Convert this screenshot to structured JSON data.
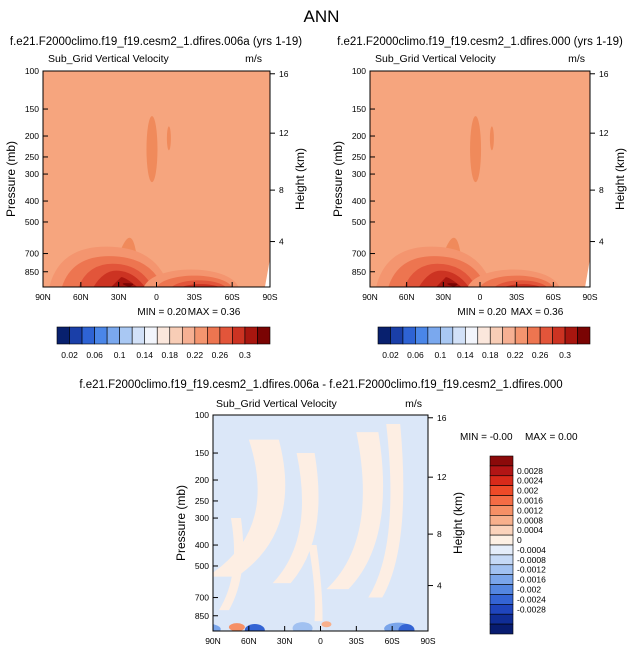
{
  "page": {
    "title": "ANN"
  },
  "chart_data": [
    {
      "type": "heatmap",
      "title": "f.e21.F2000climo.f19_f19.cesm2_1.dfires.006a (yrs 1-19)",
      "subtitle": "Sub_Grid Vertical Velocity",
      "units": "m/s",
      "xlabel": "",
      "ylabel": "Pressure (mb)",
      "ylabel_right": "Height (km)",
      "x_ticks": [
        "90N",
        "60N",
        "30N",
        "0",
        "30S",
        "60S",
        "90S"
      ],
      "y_ticks": [
        "100",
        "150",
        "200",
        "250",
        "300",
        "400",
        "500",
        "700",
        "850"
      ],
      "y_ticks_right": [
        "16",
        "12",
        "8",
        "4"
      ],
      "y_scale": "log",
      "ylim": [
        1000,
        100
      ],
      "min_label": "MIN =  0.20",
      "max_label": "MAX =  0.36",
      "background_value": 0.2,
      "features": [
        {
          "lat": 2,
          "p": 210,
          "value": 0.22
        },
        {
          "lat": -13,
          "p": 200,
          "value": 0.22
        },
        {
          "lat": 30,
          "p": 900,
          "value": 0.36
        },
        {
          "lat": -35,
          "p": 900,
          "value": 0.26
        }
      ],
      "colorbar": {
        "orientation": "horizontal",
        "labels": [
          "0.02",
          "0.06",
          "0.1",
          "0.14",
          "0.18",
          "0.22",
          "0.26",
          "0.3"
        ],
        "colors": [
          "#08206e",
          "#1a3fa8",
          "#2e63d4",
          "#4a86e8",
          "#7aa8ee",
          "#a9c8f3",
          "#d2e1f8",
          "#f2f5fc",
          "#fbe7dc",
          "#f8cdb6",
          "#f6b093",
          "#f4956f",
          "#ed7550",
          "#e2553a",
          "#cc3322",
          "#a8160f",
          "#7a0403"
        ]
      }
    },
    {
      "type": "heatmap",
      "title": "f.e21.F2000climo.f19_f19.cesm2_1.dfires.000 (yrs 1-19)",
      "subtitle": "Sub_Grid Vertical Velocity",
      "units": "m/s",
      "xlabel": "",
      "ylabel": "Pressure (mb)",
      "ylabel_right": "Height (km)",
      "x_ticks": [
        "90N",
        "60N",
        "30N",
        "0",
        "30S",
        "60S",
        "90S"
      ],
      "y_ticks": [
        "100",
        "150",
        "200",
        "250",
        "300",
        "400",
        "500",
        "700",
        "850"
      ],
      "y_ticks_right": [
        "16",
        "12",
        "8",
        "4"
      ],
      "y_scale": "log",
      "ylim": [
        1000,
        100
      ],
      "min_label": "MIN =  0.20",
      "max_label": "MAX =  0.36",
      "background_value": 0.2,
      "features": [
        {
          "lat": 2,
          "p": 210,
          "value": 0.22
        },
        {
          "lat": -13,
          "p": 200,
          "value": 0.22
        },
        {
          "lat": 30,
          "p": 900,
          "value": 0.36
        },
        {
          "lat": -35,
          "p": 900,
          "value": 0.26
        }
      ],
      "colorbar": {
        "orientation": "horizontal",
        "labels": [
          "0.02",
          "0.06",
          "0.1",
          "0.14",
          "0.18",
          "0.22",
          "0.26",
          "0.3"
        ],
        "colors": [
          "#08206e",
          "#1a3fa8",
          "#2e63d4",
          "#4a86e8",
          "#7aa8ee",
          "#a9c8f3",
          "#d2e1f8",
          "#f2f5fc",
          "#fbe7dc",
          "#f8cdb6",
          "#f6b093",
          "#f4956f",
          "#ed7550",
          "#e2553a",
          "#cc3322",
          "#a8160f",
          "#7a0403"
        ]
      }
    },
    {
      "type": "heatmap",
      "title": "f.e21.F2000climo.f19_f19.cesm2_1.dfires.006a - f.e21.F2000climo.f19_f19.cesm2_1.dfires.000",
      "subtitle": "Sub_Grid Vertical Velocity",
      "units": "m/s",
      "xlabel": "",
      "ylabel": "Pressure (mb)",
      "ylabel_right": "Height (km)",
      "x_ticks": [
        "90N",
        "60N",
        "30N",
        "0",
        "30S",
        "60S",
        "90S"
      ],
      "y_ticks": [
        "100",
        "150",
        "200",
        "250",
        "300",
        "400",
        "500",
        "700",
        "850"
      ],
      "y_ticks_right": [
        "16",
        "12",
        "8",
        "4"
      ],
      "y_scale": "log",
      "ylim": [
        1000,
        100
      ],
      "min_label": "MIN = -0.00",
      "max_label": "MAX =  0.00",
      "background_value": 0.0,
      "colorbar": {
        "orientation": "vertical",
        "labels": [
          "0.0028",
          "0.0024",
          "0.002",
          "0.0016",
          "0.0012",
          "0.0008",
          "0.0004",
          "0",
          "-0.0004",
          "-0.0008",
          "-0.0012",
          "-0.0016",
          "-0.002",
          "-0.0024",
          "-0.0028"
        ],
        "colors": [
          "#8b0a0a",
          "#b21515",
          "#d82a1a",
          "#ee4a28",
          "#f46c45",
          "#f69066",
          "#f8b08c",
          "#fbd3bb",
          "#fdf0e4",
          "#e4edfa",
          "#c5d9f6",
          "#a1c1f1",
          "#7aa5ea",
          "#5486e0",
          "#3464d4",
          "#1f45bd",
          "#102d96",
          "#081c70"
        ]
      }
    }
  ]
}
